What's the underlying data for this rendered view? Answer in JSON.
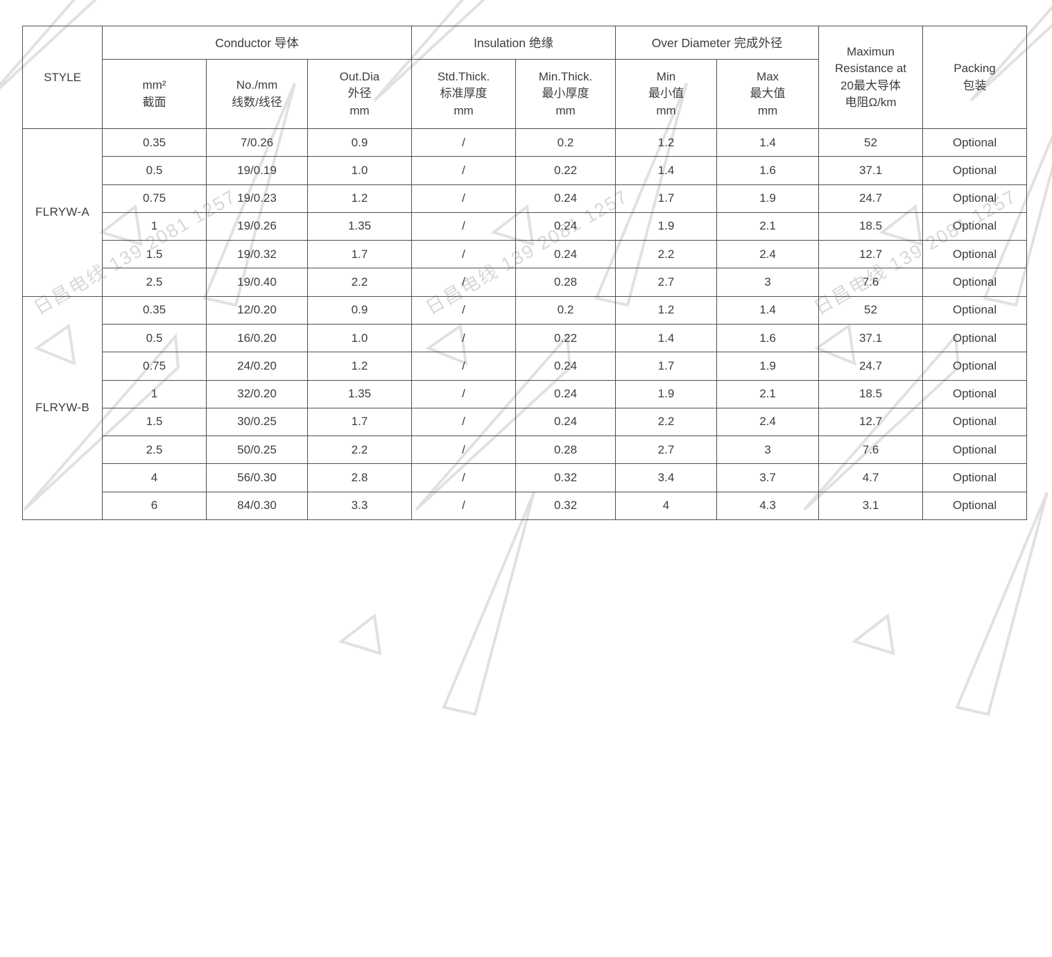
{
  "watermark": {
    "text": "日昌电线 139 2081 1257"
  },
  "table": {
    "style_col_header": "STYLE",
    "group_headers": [
      {
        "label": "Conductor 导体"
      },
      {
        "label": "Insulation 绝缘"
      },
      {
        "label": "Over Diameter 完成外径"
      }
    ],
    "sub_headers": [
      "mm²\n截面",
      "No./mm\n线数/线径",
      "Out.Dia\n外径\nmm",
      "Std.Thick.\n标准厚度\nmm",
      "Min.Thick.\n最小厚度\nmm",
      "Min\n最小值\nmm",
      "Max\n最大值\nmm"
    ],
    "resistance_header": "Maximun\nResistance at\n20最大导体\n电阻Ω/km",
    "packing_header": "Packing\n包装",
    "groups": [
      {
        "style": "FLRYW-A",
        "rows": [
          [
            "0.35",
            "7/0.26",
            "0.9",
            "/",
            "0.2",
            "1.2",
            "1.4",
            "52",
            "Optional"
          ],
          [
            "0.5",
            "19/0.19",
            "1.0",
            "/",
            "0.22",
            "1.4",
            "1.6",
            "37.1",
            "Optional"
          ],
          [
            "0.75",
            "19/0.23",
            "1.2",
            "/",
            "0.24",
            "1.7",
            "1.9",
            "24.7",
            "Optional"
          ],
          [
            "1",
            "19/0.26",
            "1.35",
            "/",
            "0.24",
            "1.9",
            "2.1",
            "18.5",
            "Optional"
          ],
          [
            "1.5",
            "19/0.32",
            "1.7",
            "/",
            "0.24",
            "2.2",
            "2.4",
            "12.7",
            "Optional"
          ],
          [
            "2.5",
            "19/0.40",
            "2.2",
            "/",
            "0.28",
            "2.7",
            "3",
            "7.6",
            "Optional"
          ]
        ]
      },
      {
        "style": "FLRYW-B",
        "rows": [
          [
            "0.35",
            "12/0.20",
            "0.9",
            "/",
            "0.2",
            "1.2",
            "1.4",
            "52",
            "Optional"
          ],
          [
            "0.5",
            "16/0.20",
            "1.0",
            "/",
            "0.22",
            "1.4",
            "1.6",
            "37.1",
            "Optional"
          ],
          [
            "0.75",
            "24/0.20",
            "1.2",
            "/",
            "0.24",
            "1.7",
            "1.9",
            "24.7",
            "Optional"
          ],
          [
            "1",
            "32/0.20",
            "1.35",
            "/",
            "0.24",
            "1.9",
            "2.1",
            "18.5",
            "Optional"
          ],
          [
            "1.5",
            "30/0.25",
            "1.7",
            "/",
            "0.24",
            "2.2",
            "2.4",
            "12.7",
            "Optional"
          ],
          [
            "2.5",
            "50/0.25",
            "2.2",
            "/",
            "0.28",
            "2.7",
            "3",
            "7.6",
            "Optional"
          ],
          [
            "4",
            "56/0.30",
            "2.8",
            "/",
            "0.32",
            "3.4",
            "3.7",
            "4.7",
            "Optional"
          ],
          [
            "6",
            "84/0.30",
            "3.3",
            "/",
            "0.32",
            "4",
            "4.3",
            "3.1",
            "Optional"
          ]
        ]
      }
    ]
  }
}
